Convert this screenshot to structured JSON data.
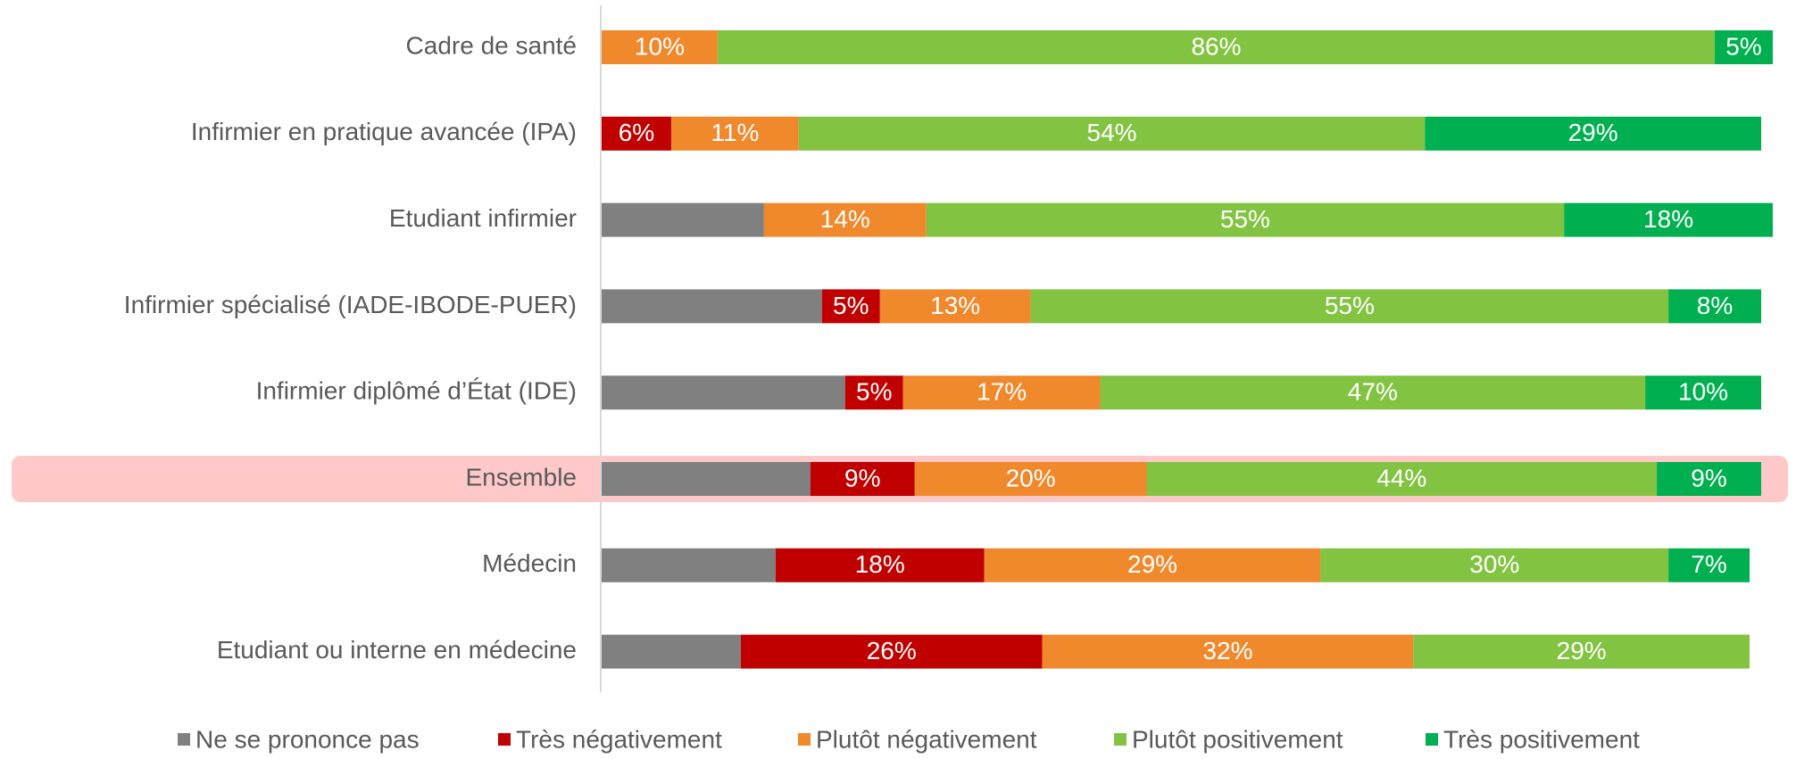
{
  "chart_data": {
    "type": "stacked_barh",
    "categories": [
      "Cadre de santé",
      "Infirmier en pratique avancée (IPA)",
      "Etudiant infirmier",
      "Infirmier spécialisé (IADE-IBODE-PUER)",
      "Infirmier diplômé d’État (IDE)",
      "Ensemble",
      "Médecin",
      "Etudiant ou interne en médecine"
    ],
    "xlim": [
      0,
      100
    ],
    "series": [
      {
        "name": "Ne se prononce pas",
        "color": "#808080",
        "values": [
          null,
          null,
          14,
          19,
          21,
          18,
          15,
          12
        ]
      },
      {
        "name": "Très négativement",
        "color": "#c00000",
        "values": [
          null,
          6,
          null,
          5,
          5,
          9,
          18,
          26
        ],
        "value_labels": [
          null,
          "6%",
          null,
          "5%",
          "5%",
          "9%",
          "18%",
          "26%"
        ]
      },
      {
        "name": "Plutôt négativement",
        "color": "#f0882c",
        "values": [
          10,
          11,
          14,
          13,
          17,
          20,
          29,
          32
        ],
        "value_labels": [
          "10%",
          "11%",
          "14%",
          "13%",
          "17%",
          "20%",
          "29%",
          "32%"
        ]
      },
      {
        "name": "Plutôt positivement",
        "color": "#82c341",
        "values": [
          86,
          54,
          55,
          55,
          47,
          44,
          30,
          29
        ],
        "value_labels": [
          "86%",
          "54%",
          "55%",
          "55%",
          "47%",
          "44%",
          "30%",
          "29%"
        ]
      },
      {
        "name": "Très positivement",
        "color": "#00b050",
        "values": [
          5,
          29,
          18,
          8,
          10,
          9,
          7,
          null
        ],
        "value_labels": [
          "5%",
          "29%",
          "18%",
          "8%",
          "10%",
          "9%",
          "7%",
          null
        ]
      }
    ]
  }
}
